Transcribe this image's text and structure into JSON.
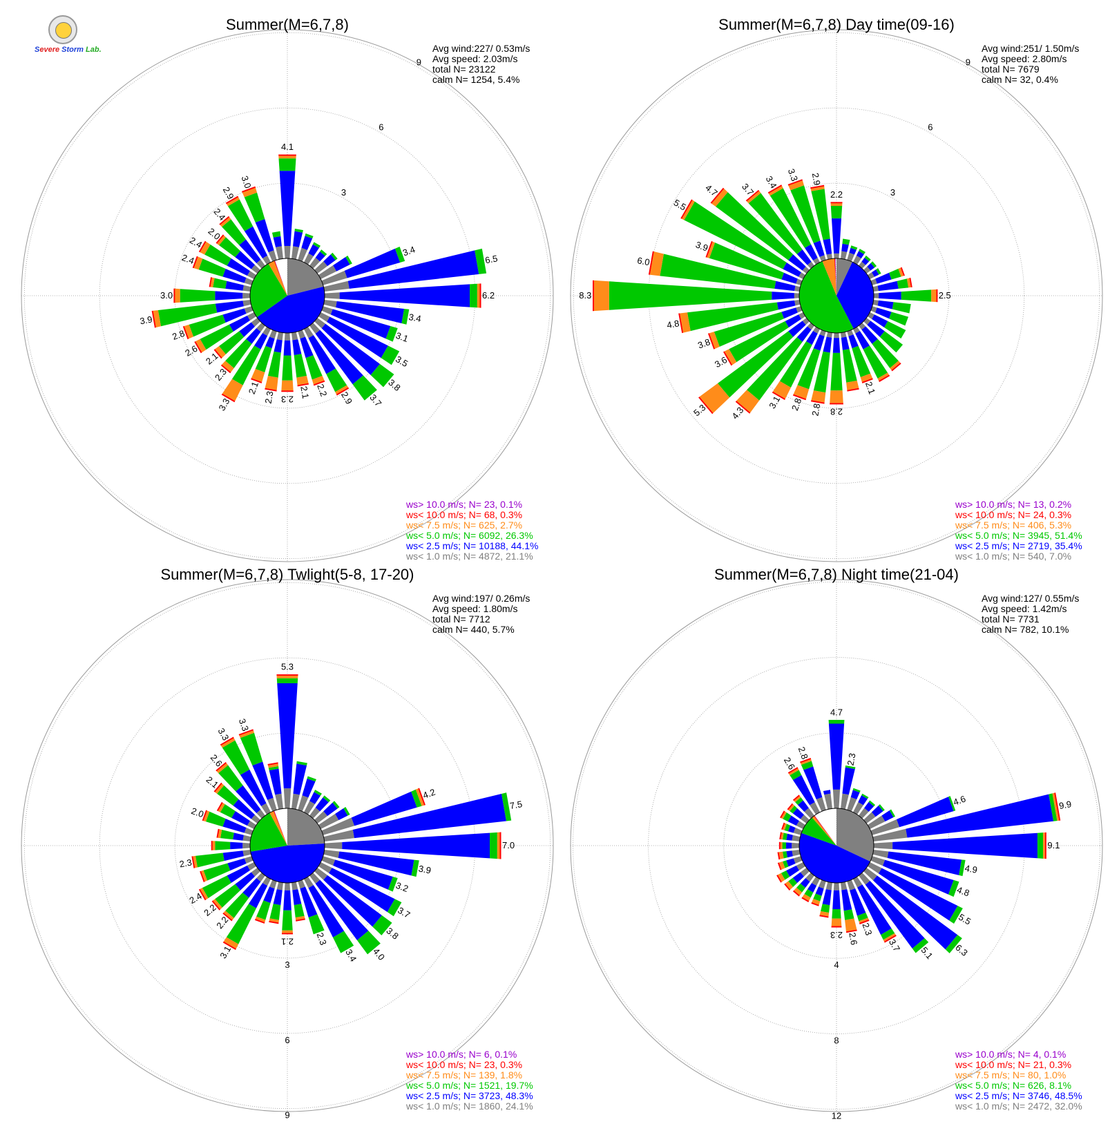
{
  "colors": {
    "ws_gt10": "#9900cc",
    "ws_lt10": "#ff0000",
    "ws_lt7_5": "#ff8c1a",
    "ws_lt5": "#00c800",
    "ws_lt2_5": "#0000ff",
    "ws_lt1": "#808080",
    "grid": "#999999"
  },
  "logo": {
    "icon": "severe-storm-lab-seal-icon",
    "text_s": "S",
    "text_evere": "evere",
    "text_storm": "Storm",
    "text_lab": "Lab."
  },
  "chart_data": [
    {
      "type": "wind-rose",
      "title": "Summer(M=6,7,8)",
      "stats": [
        "Avg wind:227/ 0.53m/s",
        "Avg speed: 2.03m/s",
        "total N=       23122",
        "calm N=   1254,   5.4%"
      ],
      "ring_labels": [
        "3",
        "6",
        "9"
      ],
      "legend": [
        {
          "key": "ws_gt10",
          "text": "ws> 10.0 m/s; N=     23,  0.1%"
        },
        {
          "key": "ws_lt10",
          "text": "ws< 10.0 m/s; N=     68,  0.3%"
        },
        {
          "key": "ws_lt7_5",
          "text": "ws<  7.5 m/s; N=    625,  2.7%"
        },
        {
          "key": "ws_lt5",
          "text": "ws<  5.0 m/s; N=   6092, 26.3%"
        },
        {
          "key": "ws_lt2_5",
          "text": "ws<  2.5 m/s; N= 10188, 44.1%"
        },
        {
          "key": "ws_lt1",
          "text": "ws<  1.0 m/s; N=   4872, 21.1%"
        }
      ],
      "pie": [
        {
          "key": "ws_lt1",
          "percent": 21.1
        },
        {
          "key": "ws_lt2_5",
          "percent": 44.1
        },
        {
          "key": "ws_lt5",
          "percent": 26.3
        },
        {
          "key": "ws_lt7_5",
          "percent": 2.7
        },
        {
          "key": "ws_lt10",
          "percent": 0.3
        },
        {
          "key": "ws_gt10",
          "percent": 0.1
        }
      ],
      "directions_deg": [
        0,
        10,
        20,
        30,
        40,
        50,
        60,
        70,
        80,
        90,
        100,
        110,
        120,
        130,
        140,
        150,
        160,
        170,
        180,
        190,
        200,
        210,
        220,
        230,
        240,
        250,
        260,
        270,
        280,
        290,
        300,
        310,
        320,
        330,
        340,
        350
      ],
      "totals": [
        4.1,
        1.2,
        1.1,
        0.9,
        0.8,
        1.0,
        1.4,
        3.4,
        6.5,
        6.2,
        3.4,
        3.1,
        3.5,
        3.8,
        3.7,
        2.9,
        2.2,
        2.1,
        2.3,
        2.3,
        2.1,
        3.3,
        2.3,
        2.1,
        2.6,
        2.8,
        3.9,
        3.0,
        1.6,
        2.4,
        2.4,
        2.0,
        2.4,
        2.9,
        3.0,
        1.1
      ],
      "gray": [
        0.5,
        0.5,
        0.5,
        0.4,
        0.4,
        0.5,
        0.7,
        1.0,
        1.0,
        0.6,
        0.5,
        0.4,
        0.4,
        0.4,
        0.4,
        0.4,
        0.3,
        0.3,
        0.3,
        0.3,
        0.3,
        0.3,
        0.3,
        0.3,
        0.3,
        0.3,
        0.3,
        0.3,
        0.3,
        0.3,
        0.3,
        0.3,
        0.3,
        0.3,
        0.4,
        0.5
      ],
      "blue": [
        3.0,
        0.6,
        0.5,
        0.4,
        0.3,
        0.4,
        0.6,
        2.2,
        5.2,
        5.2,
        2.7,
        2.4,
        2.6,
        2.7,
        2.5,
        1.6,
        0.8,
        0.6,
        0.6,
        0.5,
        0.4,
        0.6,
        0.6,
        0.6,
        0.8,
        0.9,
        1.1,
        1.1,
        0.7,
        0.9,
        0.9,
        0.8,
        1.0,
        1.3,
        1.3,
        0.4
      ],
      "green": [
        0.5,
        0.1,
        0.1,
        0.1,
        0.1,
        0.1,
        0.1,
        0.2,
        0.3,
        0.3,
        0.2,
        0.3,
        0.5,
        0.7,
        0.8,
        0.8,
        0.9,
        0.9,
        1.0,
        1.0,
        1.0,
        1.6,
        1.2,
        1.0,
        1.3,
        1.4,
        2.3,
        1.4,
        0.5,
        1.0,
        1.0,
        0.8,
        1.0,
        1.2,
        1.1,
        0.2
      ],
      "orange": [
        0.1,
        0,
        0,
        0,
        0,
        0,
        0,
        0,
        0,
        0.1,
        0,
        0,
        0,
        0,
        0,
        0.1,
        0.2,
        0.3,
        0.4,
        0.5,
        0.4,
        0.7,
        0.2,
        0.2,
        0.2,
        0.2,
        0.2,
        0.2,
        0.1,
        0.2,
        0.2,
        0.1,
        0.1,
        0.1,
        0.2,
        0
      ],
      "value_labels": [
        "4.1",
        "",
        "",
        "",
        "",
        "",
        "",
        "3.4",
        "6.5",
        "6.2",
        "3.4",
        "3.1",
        "3.5",
        "3.8",
        "3.7",
        "2.9",
        "2.2",
        "2.1",
        "2.3",
        "2.3",
        "2.1",
        "3.3",
        "2.3",
        "2.1",
        "2.6",
        "2.8",
        "3.9",
        "3.0",
        "",
        "2.4",
        "2.4",
        "2.0",
        "2.4",
        "2.9",
        "3.0",
        ""
      ]
    },
    {
      "type": "wind-rose",
      "title": "Summer(M=6,7,8) Day time(09-16)",
      "stats": [
        "Avg wind:251/ 1.50m/s",
        "Avg speed: 2.80m/s",
        "total N=        7679",
        "calm N=     32,   0.4%"
      ],
      "ring_labels": [
        "3",
        "6",
        "9"
      ],
      "legend": [
        {
          "key": "ws_gt10",
          "text": "ws> 10.0 m/s; N=     13,  0.2%"
        },
        {
          "key": "ws_lt10",
          "text": "ws< 10.0 m/s; N=     24,  0.3%"
        },
        {
          "key": "ws_lt7_5",
          "text": "ws<  7.5 m/s; N=    406,  5.3%"
        },
        {
          "key": "ws_lt5",
          "text": "ws<  5.0 m/s; N=   3945, 51.4%"
        },
        {
          "key": "ws_lt2_5",
          "text": "ws<  2.5 m/s; N=   2719, 35.4%"
        },
        {
          "key": "ws_lt1",
          "text": "ws<  1.0 m/s; N=    540,  7.0%"
        }
      ],
      "pie": [
        {
          "key": "ws_lt1",
          "percent": 7.0
        },
        {
          "key": "ws_lt2_5",
          "percent": 35.4
        },
        {
          "key": "ws_lt5",
          "percent": 51.4
        },
        {
          "key": "ws_lt7_5",
          "percent": 5.3
        },
        {
          "key": "ws_lt10",
          "percent": 0.3
        },
        {
          "key": "ws_gt10",
          "percent": 0.2
        }
      ],
      "directions_deg": [
        0,
        10,
        20,
        30,
        40,
        50,
        60,
        70,
        80,
        90,
        100,
        110,
        120,
        130,
        140,
        150,
        160,
        170,
        180,
        190,
        200,
        210,
        220,
        230,
        240,
        250,
        260,
        270,
        280,
        290,
        300,
        310,
        320,
        330,
        340,
        350
      ],
      "totals": [
        2.2,
        0.8,
        0.6,
        0.6,
        0.5,
        0.5,
        0.5,
        1.3,
        1.5,
        2.5,
        1.5,
        1.5,
        1.6,
        1.8,
        2.2,
        2.3,
        2.1,
        2.3,
        2.8,
        2.8,
        2.8,
        3.1,
        4.3,
        5.3,
        3.6,
        3.8,
        4.8,
        8.3,
        6.0,
        3.9,
        5.5,
        4.7,
        3.7,
        3.4,
        3.3,
        2.9
      ],
      "gray": [
        0.2,
        0.3,
        0.3,
        0.3,
        0.2,
        0.2,
        0.2,
        0.2,
        0.2,
        0.2,
        0.2,
        0.2,
        0.2,
        0.2,
        0.2,
        0.2,
        0.2,
        0.2,
        0.2,
        0.2,
        0.2,
        0.2,
        0.2,
        0.2,
        0.2,
        0.2,
        0.2,
        0.2,
        0.2,
        0.2,
        0.2,
        0.2,
        0.2,
        0.2,
        0.2,
        0.2
      ],
      "blue": [
        1.4,
        0.3,
        0.2,
        0.2,
        0.2,
        0.2,
        0.2,
        0.6,
        0.8,
        0.9,
        0.6,
        0.6,
        0.6,
        0.7,
        0.7,
        0.7,
        0.5,
        0.5,
        0.6,
        0.6,
        0.6,
        0.5,
        0.6,
        0.7,
        0.6,
        0.6,
        0.7,
        0.9,
        0.8,
        0.6,
        0.7,
        0.7,
        0.6,
        0.6,
        0.6,
        0.6
      ],
      "green": [
        0.5,
        0.2,
        0.1,
        0.1,
        0.1,
        0.1,
        0.1,
        0.4,
        0.4,
        1.2,
        0.7,
        0.7,
        0.8,
        0.9,
        1.2,
        1.3,
        1.2,
        1.3,
        1.5,
        1.6,
        1.6,
        1.9,
        2.9,
        3.5,
        2.5,
        2.8,
        3.6,
        6.5,
        4.6,
        3.0,
        4.4,
        3.6,
        2.8,
        2.5,
        2.3,
        2.0
      ],
      "orange": [
        0.1,
        0,
        0,
        0,
        0,
        0,
        0,
        0.1,
        0.1,
        0.2,
        0,
        0,
        0,
        0,
        0.1,
        0.1,
        0.2,
        0.3,
        0.5,
        0.4,
        0.4,
        0.5,
        0.6,
        0.9,
        0.2,
        0.2,
        0.3,
        0.6,
        0.4,
        0.1,
        0.1,
        0.2,
        0.1,
        0.1,
        0.2,
        0.1
      ],
      "value_labels": [
        "2.2",
        "",
        "",
        "",
        "",
        "",
        "",
        "",
        "",
        "2.5",
        "",
        "",
        "",
        "",
        "",
        "",
        "2.1",
        "",
        "2.8",
        "2.8",
        "2.8",
        "3.1",
        "4.3",
        "5.3",
        "3.6",
        "3.8",
        "4.8",
        "8.3",
        "6.0",
        "3.9",
        "5.5",
        "4.7",
        "3.7",
        "3.4",
        "3.3",
        "2.9"
      ]
    },
    {
      "type": "wind-rose",
      "title": "Summer(M=6,7,8) Twlight(5-8, 17-20)",
      "stats": [
        "Avg wind:197/ 0.26m/s",
        "Avg speed: 1.80m/s",
        "total N=        7712",
        "calm N=    440,   5.7%"
      ],
      "ring_labels": [
        "3",
        "6",
        "9"
      ],
      "legend": [
        {
          "key": "ws_gt10",
          "text": "ws> 10.0 m/s; N=      6,  0.1%"
        },
        {
          "key": "ws_lt10",
          "text": "ws< 10.0 m/s; N=     23,  0.3%"
        },
        {
          "key": "ws_lt7_5",
          "text": "ws<  7.5 m/s; N=    139,  1.8%"
        },
        {
          "key": "ws_lt5",
          "text": "ws<  5.0 m/s; N=   1521, 19.7%"
        },
        {
          "key": "ws_lt2_5",
          "text": "ws<  2.5 m/s; N=   3723, 48.3%"
        },
        {
          "key": "ws_lt1",
          "text": "ws<  1.0 m/s; N=   1860, 24.1%"
        }
      ],
      "pie": [
        {
          "key": "ws_lt1",
          "percent": 24.1
        },
        {
          "key": "ws_lt2_5",
          "percent": 48.3
        },
        {
          "key": "ws_lt5",
          "percent": 19.7
        },
        {
          "key": "ws_lt7_5",
          "percent": 1.8
        },
        {
          "key": "ws_lt10",
          "percent": 0.3
        },
        {
          "key": "ws_gt10",
          "percent": 0.1
        }
      ],
      "directions_deg": [
        0,
        10,
        20,
        30,
        40,
        50,
        60,
        70,
        80,
        90,
        100,
        110,
        120,
        130,
        140,
        150,
        160,
        170,
        180,
        190,
        200,
        210,
        220,
        230,
        240,
        250,
        260,
        270,
        280,
        290,
        300,
        310,
        320,
        330,
        340,
        350
      ],
      "totals": [
        5.3,
        2.0,
        1.4,
        1.0,
        1.0,
        1.1,
        1.3,
        4.2,
        7.5,
        7.0,
        3.9,
        3.2,
        3.7,
        3.8,
        4.0,
        3.4,
        2.3,
        1.5,
        2.1,
        1.6,
        1.7,
        3.1,
        2.2,
        2.2,
        2.4,
        2.1,
        2.3,
        1.5,
        1.3,
        2.0,
        1.6,
        2.1,
        2.6,
        3.3,
        3.3,
        1.8
      ],
      "gray": [
        0.8,
        0.6,
        0.6,
        0.5,
        0.4,
        0.5,
        0.8,
        1.3,
        1.2,
        0.7,
        0.6,
        0.5,
        0.5,
        0.5,
        0.4,
        0.4,
        0.3,
        0.3,
        0.3,
        0.3,
        0.3,
        0.3,
        0.3,
        0.3,
        0.3,
        0.3,
        0.3,
        0.3,
        0.3,
        0.3,
        0.3,
        0.3,
        0.3,
        0.4,
        0.5,
        0.6
      ],
      "blue": [
        4.2,
        1.2,
        0.7,
        0.4,
        0.5,
        0.5,
        0.4,
        2.6,
        6.1,
        5.9,
        3.0,
        2.4,
        2.8,
        2.7,
        2.8,
        2.2,
        1.2,
        0.6,
        0.8,
        0.6,
        0.6,
        1.0,
        0.8,
        0.8,
        0.9,
        0.7,
        0.8,
        0.5,
        0.4,
        0.9,
        0.7,
        0.9,
        1.2,
        1.5,
        1.5,
        1.0
      ],
      "green": [
        0.2,
        0.1,
        0.1,
        0.1,
        0.1,
        0.1,
        0.1,
        0.2,
        0.2,
        0.3,
        0.2,
        0.2,
        0.3,
        0.5,
        0.7,
        0.7,
        0.7,
        0.5,
        0.8,
        0.6,
        0.7,
        1.6,
        1.0,
        1.0,
        1.1,
        1.0,
        1.1,
        0.6,
        0.5,
        0.7,
        0.5,
        0.8,
        1.0,
        1.3,
        1.2,
        0.1
      ],
      "orange": [
        0.1,
        0,
        0,
        0,
        0,
        0,
        0,
        0.1,
        0,
        0.1,
        0,
        0,
        0,
        0,
        0,
        0,
        0,
        0.1,
        0.1,
        0.1,
        0.1,
        0.2,
        0.1,
        0.1,
        0.1,
        0.1,
        0.1,
        0.1,
        0.1,
        0.1,
        0.1,
        0.1,
        0.1,
        0.1,
        0.1,
        0.1
      ],
      "value_labels": [
        "5.3",
        "",
        "",
        "",
        "",
        "",
        "",
        "4.2",
        "7.5",
        "7.0",
        "3.9",
        "3.2",
        "3.7",
        "3.8",
        "4.0",
        "3.4",
        "2.3",
        "",
        "2.1",
        "",
        "",
        "3.1",
        "2.2",
        "2.2",
        "2.4",
        "",
        "2.3",
        "",
        "",
        "2.0",
        "",
        "2.1",
        "2.6",
        "3.3",
        "3.3",
        ""
      ]
    },
    {
      "type": "wind-rose",
      "title": "Summer(M=6,7,8) Night time(21-04)",
      "stats": [
        "Avg wind:127/ 0.55m/s",
        "Avg speed: 1.42m/s",
        "total N=        7731",
        "calm N=    782,  10.1%"
      ],
      "ring_labels": [
        "4",
        "8",
        "12"
      ],
      "legend": [
        {
          "key": "ws_gt10",
          "text": "ws> 10.0 m/s; N=      4,  0.1%"
        },
        {
          "key": "ws_lt10",
          "text": "ws< 10.0 m/s; N=     21,  0.3%"
        },
        {
          "key": "ws_lt7_5",
          "text": "ws<  7.5 m/s; N=     80,  1.0%"
        },
        {
          "key": "ws_lt5",
          "text": "ws<  5.0 m/s; N=    626,  8.1%"
        },
        {
          "key": "ws_lt2_5",
          "text": "ws<  2.5 m/s; N=   3746, 48.5%"
        },
        {
          "key": "ws_lt1",
          "text": "ws<  1.0 m/s; N=   2472, 32.0%"
        }
      ],
      "pie": [
        {
          "key": "ws_lt1",
          "percent": 32.0
        },
        {
          "key": "ws_lt2_5",
          "percent": 48.5
        },
        {
          "key": "ws_lt5",
          "percent": 8.1
        },
        {
          "key": "ws_lt7_5",
          "percent": 1.0
        },
        {
          "key": "ws_lt10",
          "percent": 0.3
        },
        {
          "key": "ws_gt10",
          "percent": 0.1
        }
      ],
      "directions_deg": [
        0,
        10,
        20,
        30,
        40,
        50,
        60,
        70,
        80,
        90,
        100,
        110,
        120,
        130,
        140,
        150,
        160,
        170,
        180,
        190,
        200,
        210,
        220,
        230,
        240,
        250,
        260,
        270,
        280,
        290,
        300,
        310,
        320,
        330,
        340,
        350
      ],
      "totals": [
        4.7,
        2.3,
        1.2,
        1.1,
        1.0,
        1.2,
        1.5,
        4.6,
        9.9,
        9.1,
        4.9,
        4.8,
        5.5,
        6.3,
        5.1,
        3.7,
        2.3,
        2.6,
        2.3,
        1.8,
        1.3,
        1.3,
        1.3,
        1.4,
        1.5,
        1.2,
        1.1,
        1.0,
        1.0,
        1.0,
        1.3,
        1.2,
        1.3,
        2.6,
        2.8,
        1.0
      ],
      "gray": [
        1.0,
        0.8,
        0.7,
        0.6,
        0.5,
        0.6,
        0.9,
        1.5,
        1.8,
        1.0,
        0.8,
        0.7,
        0.7,
        0.7,
        0.6,
        0.5,
        0.5,
        0.4,
        0.4,
        0.4,
        0.4,
        0.4,
        0.4,
        0.4,
        0.4,
        0.4,
        0.4,
        0.4,
        0.4,
        0.4,
        0.4,
        0.4,
        0.5,
        0.6,
        0.7,
        0.8
      ],
      "blue": [
        3.5,
        1.4,
        0.4,
        0.4,
        0.4,
        0.5,
        0.5,
        3.0,
        7.8,
        7.7,
        3.9,
        3.8,
        4.5,
        5.3,
        4.2,
        2.8,
        1.4,
        1.1,
        1.0,
        0.8,
        0.4,
        0.4,
        0.4,
        0.5,
        0.6,
        0.4,
        0.3,
        0.3,
        0.3,
        0.3,
        0.5,
        0.5,
        0.5,
        1.6,
        1.7,
        0.2
      ],
      "green": [
        0.2,
        0.1,
        0.1,
        0.1,
        0.1,
        0.1,
        0.1,
        0.1,
        0.2,
        0.3,
        0.2,
        0.3,
        0.3,
        0.3,
        0.3,
        0.3,
        0.3,
        0.5,
        0.5,
        0.4,
        0.3,
        0.3,
        0.3,
        0.3,
        0.3,
        0.2,
        0.2,
        0.2,
        0.2,
        0.2,
        0.3,
        0.2,
        0.2,
        0.3,
        0.3,
        0
      ],
      "orange": [
        0,
        0,
        0,
        0,
        0,
        0,
        0,
        0,
        0.1,
        0.1,
        0,
        0,
        0,
        0,
        0,
        0.1,
        0.1,
        0.6,
        0.4,
        0.2,
        0.2,
        0.2,
        0.2,
        0.2,
        0.2,
        0.2,
        0.2,
        0.1,
        0.1,
        0.1,
        0.1,
        0.1,
        0.1,
        0.1,
        0.1,
        0
      ],
      "value_labels": [
        "4.7",
        "2.3",
        "",
        "",
        "",
        "",
        "",
        "4.6",
        "9.9",
        "9.1",
        "4.9",
        "4.8",
        "5.5",
        "6.3",
        "5.1",
        "3.7",
        "2.3",
        "2.6",
        "2.3",
        "",
        "",
        "",
        "",
        "",
        "",
        "",
        "",
        "",
        "",
        "",
        "",
        "",
        "",
        "2.6",
        "2.8",
        ""
      ]
    }
  ]
}
